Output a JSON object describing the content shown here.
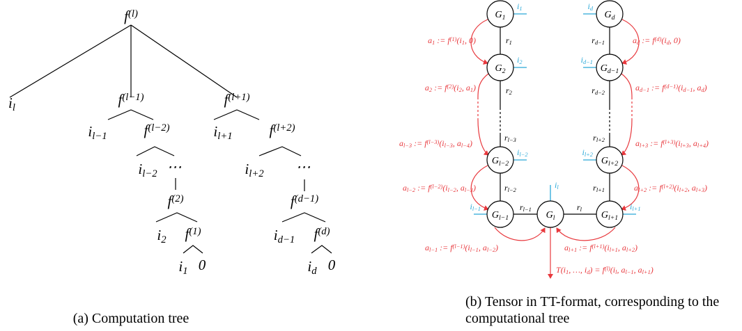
{
  "tree": {
    "labels": [
      [
        [
          "f"
        ],
        [
          "(l)",
          "sup"
        ]
      ],
      [
        [
          "i"
        ],
        [
          "l",
          "sub"
        ]
      ],
      [
        [
          "f"
        ],
        [
          "(l−1)",
          "sup"
        ]
      ],
      [
        [
          "f"
        ],
        [
          "(l+1)",
          "sup"
        ]
      ],
      [
        [
          "i"
        ],
        [
          "l−1",
          "sub"
        ]
      ],
      [
        [
          "f"
        ],
        [
          "(l−2)",
          "sup"
        ]
      ],
      [
        [
          "i"
        ],
        [
          "l−2",
          "sub"
        ]
      ],
      [
        [
          "⋯"
        ]
      ],
      [
        [
          "f"
        ],
        [
          "(2)",
          "sup"
        ]
      ],
      [
        [
          "i"
        ],
        [
          "2",
          "sub"
        ]
      ],
      [
        [
          "f"
        ],
        [
          "(1)",
          "sup"
        ]
      ],
      [
        [
          "i"
        ],
        [
          "1",
          "sub"
        ]
      ],
      [
        [
          "0"
        ]
      ],
      [
        [
          "i"
        ],
        [
          "l+1",
          "sub"
        ]
      ],
      [
        [
          "f"
        ],
        [
          "(l+2)",
          "sup"
        ]
      ],
      [
        [
          "i"
        ],
        [
          "l+2",
          "sub"
        ]
      ],
      [
        [
          "⋯"
        ]
      ],
      [
        [
          "f"
        ],
        [
          "(d−1)",
          "sup"
        ]
      ],
      [
        [
          "i"
        ],
        [
          "d−1",
          "sub"
        ]
      ],
      [
        [
          "f"
        ],
        [
          "(d)",
          "sup"
        ]
      ],
      [
        [
          "i"
        ],
        [
          "d",
          "sub"
        ]
      ],
      [
        [
          "0"
        ]
      ]
    ],
    "caption": "(a) Computation tree"
  },
  "tt": {
    "cores": [
      [
        [
          "G"
        ],
        [
          "1",
          "sub"
        ]
      ],
      [
        [
          "G"
        ],
        [
          "2",
          "sub"
        ]
      ],
      [
        [
          "G"
        ],
        [
          "l−2",
          "sub"
        ]
      ],
      [
        [
          "G"
        ],
        [
          "l−1",
          "sub"
        ]
      ],
      [
        [
          "G"
        ],
        [
          "l",
          "sub"
        ]
      ],
      [
        [
          "G"
        ],
        [
          "l+1",
          "sub"
        ]
      ],
      [
        [
          "G"
        ],
        [
          "l+2",
          "sub"
        ]
      ],
      [
        [
          "G"
        ],
        [
          "d−1",
          "sub"
        ]
      ],
      [
        [
          "G"
        ],
        [
          "d",
          "sub"
        ]
      ]
    ],
    "ranks": [
      [
        [
          "r"
        ],
        [
          "1",
          "sub"
        ]
      ],
      [
        [
          "r"
        ],
        [
          "2",
          "sub"
        ]
      ],
      [
        [
          "r"
        ],
        [
          "l−3",
          "sub"
        ]
      ],
      [
        [
          "r"
        ],
        [
          "l−2",
          "sub"
        ]
      ],
      [
        [
          "r"
        ],
        [
          "l−1",
          "sub"
        ]
      ],
      [
        [
          "r"
        ],
        [
          "l",
          "sub"
        ]
      ],
      [
        [
          "r"
        ],
        [
          "l+1",
          "sub"
        ]
      ],
      [
        [
          "r"
        ],
        [
          "l+2",
          "sub"
        ]
      ],
      [
        [
          "r"
        ],
        [
          "d−2",
          "sub"
        ]
      ],
      [
        [
          "r"
        ],
        [
          "d−1",
          "sub"
        ]
      ]
    ],
    "indices": [
      [
        [
          "i"
        ],
        [
          "1",
          "sub"
        ]
      ],
      [
        [
          "i"
        ],
        [
          "2",
          "sub"
        ]
      ],
      [
        [
          "i"
        ],
        [
          "l−2",
          "sub"
        ]
      ],
      [
        [
          "i"
        ],
        [
          "l−1",
          "sub"
        ]
      ],
      [
        [
          "i"
        ],
        [
          "l",
          "sub"
        ]
      ],
      [
        [
          "i"
        ],
        [
          "l+1",
          "sub"
        ]
      ],
      [
        [
          "i"
        ],
        [
          "l+2",
          "sub"
        ]
      ],
      [
        [
          "i"
        ],
        [
          "d−1",
          "sub"
        ]
      ],
      [
        [
          "i"
        ],
        [
          "d",
          "sub"
        ]
      ]
    ],
    "annotations": [
      [
        [
          "a"
        ],
        [
          "1",
          "sub"
        ],
        [
          " := f"
        ],
        [
          "(1)",
          "sup"
        ],
        [
          "(i"
        ],
        [
          "1",
          "sub"
        ],
        [
          ", 0)"
        ]
      ],
      [
        [
          "a"
        ],
        [
          "2",
          "sub"
        ],
        [
          " := f"
        ],
        [
          "(2)",
          "sup"
        ],
        [
          "(i"
        ],
        [
          "2",
          "sub"
        ],
        [
          ", a"
        ],
        [
          "1",
          "sub"
        ],
        [
          ")"
        ]
      ],
      [
        [
          "a"
        ],
        [
          "l−3",
          "sub"
        ],
        [
          " := f"
        ],
        [
          "(l−3)",
          "sup"
        ],
        [
          "(i"
        ],
        [
          "l−3",
          "sub"
        ],
        [
          ", a"
        ],
        [
          "l−4",
          "sub"
        ],
        [
          ")"
        ]
      ],
      [
        [
          "a"
        ],
        [
          "l−2",
          "sub"
        ],
        [
          " := f"
        ],
        [
          "(l−2)",
          "sup"
        ],
        [
          "(i"
        ],
        [
          "l−2",
          "sub"
        ],
        [
          ", a"
        ],
        [
          "l−3",
          "sub"
        ],
        [
          ")"
        ]
      ],
      [
        [
          "a"
        ],
        [
          "l−1",
          "sub"
        ],
        [
          " := f"
        ],
        [
          "(l−1)",
          "sup"
        ],
        [
          "(i"
        ],
        [
          "l−1",
          "sub"
        ],
        [
          ", a"
        ],
        [
          "l−2",
          "sub"
        ],
        [
          ")"
        ]
      ],
      [
        [
          "a"
        ],
        [
          "l+1",
          "sub"
        ],
        [
          " := f"
        ],
        [
          "(l+1)",
          "sup"
        ],
        [
          "(i"
        ],
        [
          "l+1",
          "sub"
        ],
        [
          ", a"
        ],
        [
          "l+2",
          "sub"
        ],
        [
          ")"
        ]
      ],
      [
        [
          "a"
        ],
        [
          "l+2",
          "sub"
        ],
        [
          " := f"
        ],
        [
          "(l+2)",
          "sup"
        ],
        [
          "(i"
        ],
        [
          "l+2",
          "sub"
        ],
        [
          ", a"
        ],
        [
          "l+3",
          "sub"
        ],
        [
          ")"
        ]
      ],
      [
        [
          "a"
        ],
        [
          "l+3",
          "sub"
        ],
        [
          " := f"
        ],
        [
          "(l+3)",
          "sup"
        ],
        [
          "(i"
        ],
        [
          "l+3",
          "sub"
        ],
        [
          ", a"
        ],
        [
          "l+4",
          "sub"
        ],
        [
          ")"
        ]
      ],
      [
        [
          "a"
        ],
        [
          "d−1",
          "sub"
        ],
        [
          " := f"
        ],
        [
          "(d−1)",
          "sup"
        ],
        [
          "(i"
        ],
        [
          "d−1",
          "sub"
        ],
        [
          ", a"
        ],
        [
          "d",
          "sub"
        ],
        [
          ")"
        ]
      ],
      [
        [
          "a"
        ],
        [
          "d",
          "sub"
        ],
        [
          " := f"
        ],
        [
          "(d)",
          "sup"
        ],
        [
          "(i"
        ],
        [
          "d",
          "sub"
        ],
        [
          ", 0)"
        ]
      ]
    ],
    "output": [
      [
        "T"
      ],
      [
        "(i"
      ],
      [
        "1",
        "sub"
      ],
      [
        ", …, i"
      ],
      [
        "d",
        "sub"
      ],
      [
        ") = f"
      ],
      [
        "(l)",
        "sup"
      ],
      [
        "(i"
      ],
      [
        "l",
        "sub"
      ],
      [
        ", a"
      ],
      [
        "l−1",
        "sub"
      ],
      [
        ", a"
      ],
      [
        "l+1",
        "sub"
      ],
      [
        ")"
      ]
    ],
    "caption": [
      "(b) Tensor in TT-format, corresponding to the",
      "computational tree"
    ]
  }
}
